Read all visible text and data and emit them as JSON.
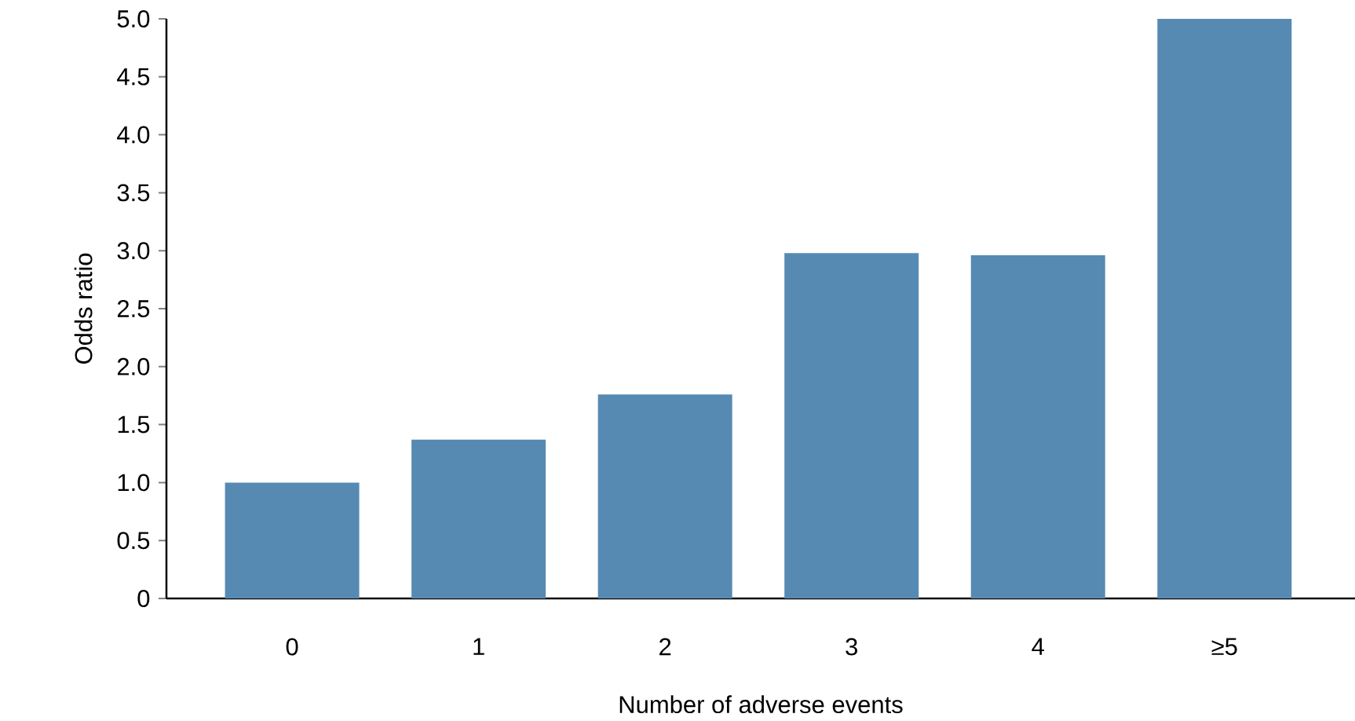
{
  "chart_data": {
    "type": "bar",
    "xlabel": "Number of adverse events",
    "ylabel": "Odds ratio",
    "categories": [
      "0",
      "1",
      "2",
      "3",
      "4",
      "≥5"
    ],
    "values": [
      1.0,
      1.37,
      1.76,
      2.98,
      2.96,
      5.0
    ],
    "color": "#568ab3",
    "ylim": [
      0,
      5
    ],
    "yticks": [
      0,
      {
        "value": 0.5,
        "label": "0.5"
      },
      {
        "value": 1,
        "label": "1.0"
      },
      {
        "value": 1.5,
        "label": "1.5"
      },
      {
        "value": 2,
        "label": "2.0"
      },
      {
        "value": 2.5,
        "label": "2.5"
      },
      {
        "value": 3,
        "label": "3.0"
      },
      {
        "value": 3.5,
        "label": "3.5"
      },
      {
        "value": 4,
        "label": "4.0"
      },
      {
        "value": 4.5,
        "label": "4.5"
      },
      {
        "value": 5,
        "label": "5.0"
      }
    ]
  }
}
